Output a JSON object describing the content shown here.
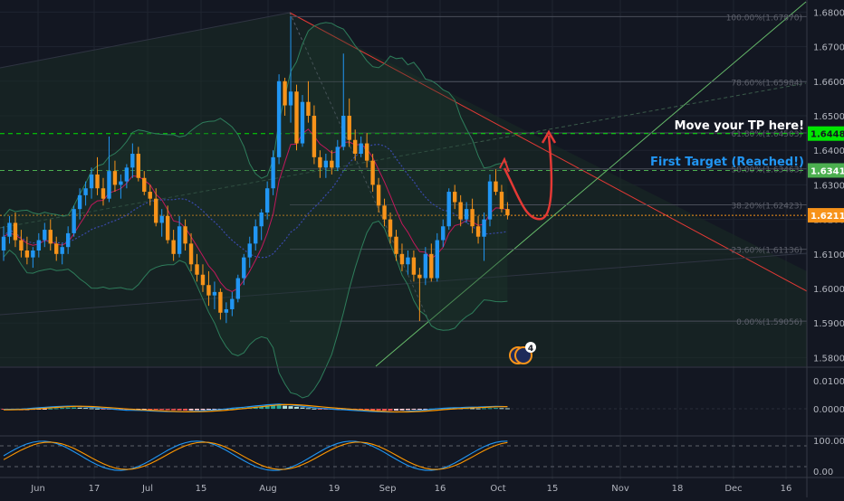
{
  "chart_data": {
    "type": "candlestick",
    "instrument_note": "",
    "price_axis": {
      "ticks": [
        "1.68000",
        "1.67000",
        "1.66000",
        "1.65000",
        "1.64000",
        "1.63000",
        "1.62000",
        "1.61000",
        "1.60000",
        "1.59000",
        "1.58000"
      ],
      "ylim": [
        1.5775,
        1.6835
      ]
    },
    "time_axis": {
      "ticks": [
        "Jun",
        "17",
        "Jul",
        "15",
        "Aug",
        "19",
        "Sep",
        "16",
        "Oct",
        "15",
        "Nov",
        "18",
        "Dec",
        "16"
      ]
    },
    "price_badges": [
      {
        "value": "1.64484",
        "bg": "#00e600",
        "fg": "#131722"
      },
      {
        "value": "1.63417",
        "bg": "#4caf50",
        "fg": "#ffffff"
      },
      {
        "value": "1.62119",
        "bg": "#f7931a",
        "fg": "#ffffff"
      }
    ],
    "horizontal_lines": [
      {
        "price": 1.64484,
        "color": "#00e600",
        "style": "dashed"
      },
      {
        "price": 1.63417,
        "color": "#4caf50",
        "style": "dashed"
      },
      {
        "price": 1.62119,
        "color": "#f7931a",
        "style": "dotted"
      }
    ],
    "fibonacci": [
      {
        "label": "100.00%(1.67870)",
        "price": 1.6787
      },
      {
        "label": "78.60%(1.65984)",
        "price": 1.65984
      },
      {
        "label": "61.80%(1.64503)",
        "price": 1.64503
      },
      {
        "label": "50.00%(1.63463)",
        "price": 1.63463
      },
      {
        "label": "38.20%(1.62423)",
        "price": 1.62423
      },
      {
        "label": "23.60%(1.61136)",
        "price": 1.61136
      },
      {
        "label": "0.00%(1.59056)",
        "price": 1.59056
      }
    ],
    "annotations": [
      {
        "text": "Move your TP here!",
        "color": "#ffffff"
      },
      {
        "text": "First Target (Reached!)",
        "color": "#2196f3"
      }
    ],
    "event_badge": {
      "count": "4"
    },
    "macd_axis": {
      "ticks": [
        "0.01000",
        "0.00000"
      ]
    },
    "stoch_axis": {
      "ticks": [
        "100.00",
        "0.00"
      ]
    },
    "candles": [
      [
        1.611,
        1.618,
        1.608,
        1.615
      ],
      [
        1.615,
        1.621,
        1.613,
        1.619
      ],
      [
        1.619,
        1.622,
        1.612,
        1.614
      ],
      [
        1.614,
        1.617,
        1.609,
        1.611
      ],
      [
        1.611,
        1.615,
        1.607,
        1.609
      ],
      [
        1.609,
        1.612,
        1.606,
        1.611
      ],
      [
        1.611,
        1.616,
        1.609,
        1.614
      ],
      [
        1.614,
        1.619,
        1.612,
        1.617
      ],
      [
        1.617,
        1.62,
        1.611,
        1.613
      ],
      [
        1.613,
        1.615,
        1.608,
        1.61
      ],
      [
        1.61,
        1.613,
        1.607,
        1.612
      ],
      [
        1.612,
        1.618,
        1.61,
        1.616
      ],
      [
        1.616,
        1.624,
        1.615,
        1.623
      ],
      [
        1.623,
        1.629,
        1.62,
        1.627
      ],
      [
        1.627,
        1.631,
        1.624,
        1.629
      ],
      [
        1.629,
        1.635,
        1.626,
        1.633
      ],
      [
        1.633,
        1.638,
        1.627,
        1.629
      ],
      [
        1.629,
        1.632,
        1.624,
        1.626
      ],
      [
        1.626,
        1.644,
        1.625,
        1.634
      ],
      [
        1.634,
        1.637,
        1.628,
        1.63
      ],
      [
        1.63,
        1.633,
        1.626,
        1.631
      ],
      [
        1.631,
        1.636,
        1.629,
        1.635
      ],
      [
        1.635,
        1.642,
        1.632,
        1.639
      ],
      [
        1.639,
        1.641,
        1.631,
        1.632
      ],
      [
        1.632,
        1.634,
        1.627,
        1.628
      ],
      [
        1.628,
        1.63,
        1.624,
        1.626
      ],
      [
        1.626,
        1.629,
        1.618,
        1.619
      ],
      [
        1.619,
        1.623,
        1.615,
        1.621
      ],
      [
        1.621,
        1.624,
        1.613,
        1.614
      ],
      [
        1.614,
        1.617,
        1.608,
        1.61
      ],
      [
        1.61,
        1.621,
        1.609,
        1.618
      ],
      [
        1.618,
        1.62,
        1.611,
        1.613
      ],
      [
        1.613,
        1.616,
        1.605,
        1.607
      ],
      [
        1.607,
        1.61,
        1.602,
        1.604
      ],
      [
        1.604,
        1.607,
        1.599,
        1.601
      ],
      [
        1.601,
        1.605,
        1.595,
        1.598
      ],
      [
        1.598,
        1.602,
        1.594,
        1.599
      ],
      [
        1.599,
        1.6,
        1.591,
        1.593
      ],
      [
        1.593,
        1.596,
        1.59,
        1.594
      ],
      [
        1.594,
        1.599,
        1.592,
        1.597
      ],
      [
        1.597,
        1.604,
        1.596,
        1.603
      ],
      [
        1.603,
        1.61,
        1.601,
        1.609
      ],
      [
        1.609,
        1.615,
        1.606,
        1.613
      ],
      [
        1.613,
        1.62,
        1.611,
        1.618
      ],
      [
        1.618,
        1.623,
        1.614,
        1.622
      ],
      [
        1.622,
        1.631,
        1.62,
        1.629
      ],
      [
        1.629,
        1.64,
        1.627,
        1.638
      ],
      [
        1.638,
        1.662,
        1.636,
        1.66
      ],
      [
        1.66,
        1.661,
        1.65,
        1.653
      ],
      [
        1.653,
        1.6787,
        1.648,
        1.657
      ],
      [
        1.657,
        1.659,
        1.64,
        1.642
      ],
      [
        1.642,
        1.656,
        1.641,
        1.654
      ],
      [
        1.654,
        1.66,
        1.648,
        1.65
      ],
      [
        1.65,
        1.653,
        1.636,
        1.638
      ],
      [
        1.638,
        1.64,
        1.632,
        1.635
      ],
      [
        1.635,
        1.639,
        1.632,
        1.637
      ],
      [
        1.637,
        1.64,
        1.633,
        1.635
      ],
      [
        1.635,
        1.643,
        1.634,
        1.641
      ],
      [
        1.641,
        1.668,
        1.64,
        1.65
      ],
      [
        1.65,
        1.655,
        1.641,
        1.643
      ],
      [
        1.643,
        1.646,
        1.637,
        1.639
      ],
      [
        1.639,
        1.644,
        1.638,
        1.642
      ],
      [
        1.642,
        1.645,
        1.635,
        1.637
      ],
      [
        1.637,
        1.639,
        1.628,
        1.63
      ],
      [
        1.63,
        1.632,
        1.622,
        1.624
      ],
      [
        1.624,
        1.626,
        1.618,
        1.62
      ],
      [
        1.62,
        1.622,
        1.613,
        1.615
      ],
      [
        1.615,
        1.617,
        1.608,
        1.61
      ],
      [
        1.61,
        1.613,
        1.605,
        1.607
      ],
      [
        1.607,
        1.611,
        1.604,
        1.609
      ],
      [
        1.609,
        1.611,
        1.602,
        1.604
      ],
      [
        1.604,
        1.606,
        1.5906,
        1.603
      ],
      [
        1.603,
        1.612,
        1.601,
        1.61
      ],
      [
        1.61,
        1.613,
        1.602,
        1.603
      ],
      [
        1.603,
        1.616,
        1.602,
        1.614
      ],
      [
        1.614,
        1.62,
        1.612,
        1.618
      ],
      [
        1.618,
        1.629,
        1.617,
        1.628
      ],
      [
        1.628,
        1.63,
        1.623,
        1.625
      ],
      [
        1.625,
        1.627,
        1.618,
        1.62
      ],
      [
        1.62,
        1.625,
        1.619,
        1.623
      ],
      [
        1.623,
        1.626,
        1.616,
        1.618
      ],
      [
        1.618,
        1.621,
        1.613,
        1.615
      ],
      [
        1.615,
        1.622,
        1.608,
        1.62
      ],
      [
        1.62,
        1.633,
        1.618,
        1.631
      ],
      [
        1.631,
        1.6345,
        1.627,
        1.628
      ],
      [
        1.628,
        1.63,
        1.622,
        1.623
      ],
      [
        1.623,
        1.625,
        1.62,
        1.6212
      ]
    ],
    "macd_hist": [
      -0.0005,
      -0.0006,
      -0.0008,
      -0.0009,
      -0.0008,
      -0.0006,
      -0.0004,
      -0.0002,
      0.0001,
      0.0003,
      0.0005,
      0.0007,
      0.0008,
      0.0007,
      0.0005,
      0.0003,
      0.0001,
      -0.0001,
      -0.0002,
      -0.0004,
      -0.0005,
      -0.0006,
      -0.0005,
      -0.0004,
      -0.0003,
      -0.0005,
      -0.0006,
      -0.0007,
      -0.0008,
      -0.0009,
      -0.001,
      -0.0011,
      -0.001,
      -0.0009,
      -0.0008,
      -0.0006,
      -0.0005,
      -0.0004,
      -0.0002,
      0.0001,
      0.0003,
      0.0005,
      0.0008,
      0.0011,
      0.0014,
      0.0018,
      0.002,
      0.0022,
      0.0019,
      0.0016,
      0.0012,
      0.0008,
      0.0004,
      0.0001,
      -0.0002,
      -0.0003,
      -0.0004,
      -0.0005,
      -0.0004,
      -0.0005,
      -0.0006,
      -0.0007,
      -0.0008,
      -0.0009,
      -0.001,
      -0.0011,
      -0.0012,
      -0.0011,
      -0.001,
      -0.0008,
      -0.0006,
      -0.0004,
      -0.0002,
      0.0001,
      0.0003,
      0.0004,
      0.0005,
      0.0004,
      0.0003,
      0.0004,
      0.0003,
      0.0002,
      0.0003,
      0.0004,
      0.0005,
      0.0004,
      0.0003
    ]
  }
}
